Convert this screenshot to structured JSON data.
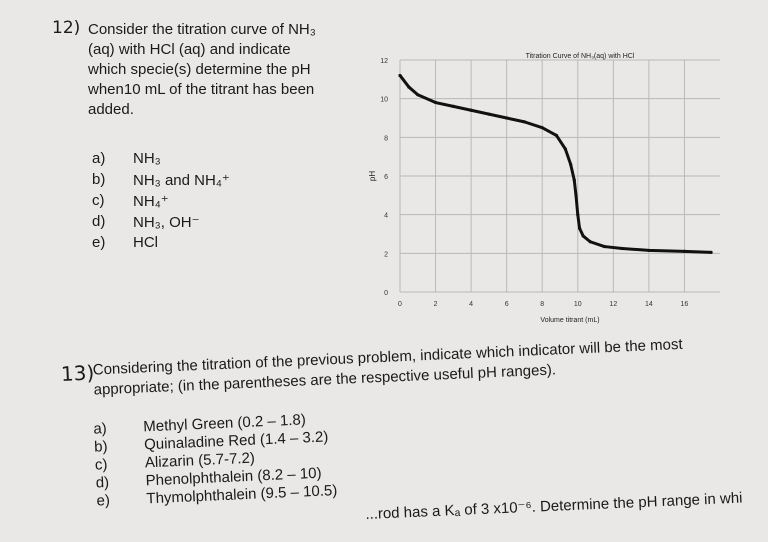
{
  "q12": {
    "number": "12)",
    "lines": [
      "Consider the titration curve of NH₃",
      "(aq) with HCl (aq) and indicate",
      "which specie(s) determine the pH",
      "when10 mL of the titrant has been",
      "added."
    ],
    "options": [
      {
        "letter": "a)",
        "text": "NH₃"
      },
      {
        "letter": "b)",
        "text": "NH₃ and NH₄⁺"
      },
      {
        "letter": "c)",
        "text": "NH₄⁺"
      },
      {
        "letter": "d)",
        "text": "NH₃, OH⁻"
      },
      {
        "letter": "e)",
        "text": "HCl"
      }
    ]
  },
  "chart_data": {
    "type": "line",
    "title": "Titration Curve of NH₃(aq) with HCl",
    "xlabel": "Volume titrant (mL)",
    "ylabel": "pH",
    "xlim": [
      0,
      18
    ],
    "ylim": [
      0,
      12
    ],
    "grid": true,
    "xticks": [
      0,
      2,
      4,
      6,
      8,
      10,
      12,
      14,
      16
    ],
    "yticks": [
      0,
      2,
      4,
      6,
      8,
      10,
      12
    ],
    "x": [
      0,
      0.5,
      1,
      2,
      3,
      4,
      5,
      6,
      7,
      8,
      8.8,
      9.3,
      9.6,
      9.8,
      9.9,
      10,
      10.1,
      10.3,
      10.7,
      11.5,
      12.5,
      14,
      16,
      17.5
    ],
    "y": [
      11.2,
      10.6,
      10.2,
      9.8,
      9.6,
      9.4,
      9.2,
      9.0,
      8.8,
      8.5,
      8.1,
      7.4,
      6.6,
      5.8,
      5.0,
      4.0,
      3.3,
      2.9,
      2.6,
      2.35,
      2.25,
      2.15,
      2.1,
      2.05
    ]
  },
  "q13": {
    "number": "13)",
    "lines": [
      "Considering the titration of the previous problem, indicate which indicator will be the most",
      "appropriate; (in the parentheses are the respective useful pH ranges)."
    ],
    "options": [
      {
        "letter": "a)",
        "text": "Methyl Green (0.2 – 1.8)"
      },
      {
        "letter": "b)",
        "text": "Quinaladine Red (1.4 – 3.2)"
      },
      {
        "letter": "c)",
        "text": "Alizarin (5.7-7.2)"
      },
      {
        "letter": "d)",
        "text": "Phenolphthalein (8.2 – 10)"
      },
      {
        "letter": "e)",
        "text": "Thymolphthalein (9.5 – 10.5)"
      }
    ]
  },
  "footer": {
    "text": "...rod has a Kₐ of 3 x10⁻⁶. Determine the pH range in whi"
  }
}
